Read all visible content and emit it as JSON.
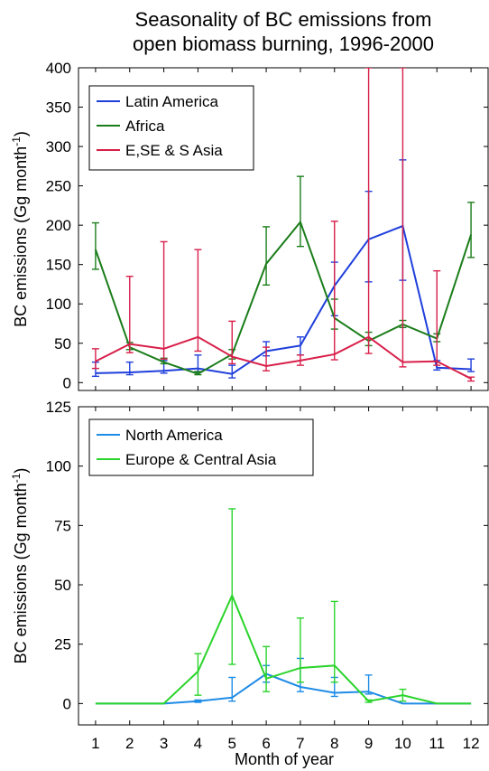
{
  "figure": {
    "title_line1": "Seasonality of BC emissions from",
    "title_line2": "open biomass burning, 1996-2000",
    "xlabel": "Month of year"
  },
  "chart_data": [
    {
      "type": "line",
      "ylabel": "BC emissions (Gg month",
      "ylabel_sup": "-1",
      "ylabel_close": ")",
      "ylim": [
        -10,
        400
      ],
      "yticks": [
        0,
        50,
        100,
        150,
        200,
        250,
        300,
        350,
        400
      ],
      "xlim": [
        0.5,
        12.5
      ],
      "xticks": [
        1,
        2,
        3,
        4,
        5,
        6,
        7,
        8,
        9,
        10,
        11,
        12
      ],
      "legend_position": "top-left",
      "series": [
        {
          "name": "Latin America",
          "color": "#1f3fdb",
          "values": [
            12,
            13,
            15,
            18,
            11,
            40,
            47,
            123,
            182,
            199,
            19,
            17
          ],
          "err_low": [
            8,
            10,
            12,
            14,
            6,
            34,
            35,
            85,
            128,
            130,
            16,
            14
          ],
          "err_high": [
            26,
            26,
            28,
            35,
            22,
            52,
            58,
            153,
            243,
            283,
            28,
            30
          ]
        },
        {
          "name": "Africa",
          "color": "#1b7d1b",
          "values": [
            169,
            45,
            26,
            11,
            36,
            151,
            204,
            82,
            53,
            74,
            56,
            188
          ],
          "err_low": [
            144,
            42,
            24,
            10,
            30,
            124,
            173,
            68,
            47,
            70,
            52,
            159
          ],
          "err_high": [
            203,
            51,
            31,
            14,
            42,
            198,
            262,
            106,
            64,
            79,
            62,
            229
          ]
        },
        {
          "name": "E,SE & S Asia",
          "color": "#d81f4a",
          "values": [
            27,
            49,
            43,
            58,
            33,
            21,
            28,
            36,
            58,
            26,
            27,
            5
          ],
          "err_low": [
            18,
            38,
            30,
            40,
            24,
            15,
            22,
            29,
            37,
            20,
            22,
            2
          ],
          "err_high": [
            43,
            135,
            179,
            169,
            78,
            45,
            35,
            205,
            400,
            400,
            142,
            7
          ]
        }
      ]
    },
    {
      "type": "line",
      "ylabel": "BC emissions (Gg month",
      "ylabel_sup": "-1",
      "ylabel_close": ")",
      "ylim": [
        -9,
        125
      ],
      "yticks": [
        0,
        25,
        50,
        75,
        100,
        125
      ],
      "xlim": [
        0.5,
        12.5
      ],
      "xticks": [
        1,
        2,
        3,
        4,
        5,
        6,
        7,
        8,
        9,
        10,
        11,
        12
      ],
      "legend_position": "top-left",
      "series": [
        {
          "name": "North America",
          "color": "#1f8ce6",
          "values": [
            0,
            0,
            0,
            1,
            2.5,
            12.5,
            7,
            4.5,
            5,
            0,
            0,
            0
          ],
          "err_low": [
            0,
            0,
            0,
            0.5,
            1,
            9,
            5,
            3,
            4,
            0,
            0,
            0
          ],
          "err_high": [
            0,
            0,
            0,
            1.5,
            11,
            16,
            19,
            11,
            12,
            0,
            0,
            0
          ],
          "errorbar_months": [
            4,
            5,
            6,
            7,
            8,
            9
          ]
        },
        {
          "name": "Europe & Central Asia",
          "color": "#2bd42b",
          "values": [
            0,
            0,
            0,
            13.5,
            45.5,
            10.5,
            15,
            16,
            1,
            3.5,
            0,
            0
          ],
          "err_low": [
            0,
            0,
            0,
            3.5,
            16.5,
            5,
            9,
            9,
            0.5,
            1,
            0,
            0
          ],
          "err_high": [
            0,
            0,
            0,
            21,
            82,
            24,
            36,
            43,
            1.5,
            6,
            0,
            0
          ],
          "errorbar_months": [
            4,
            5,
            6,
            7,
            8,
            9,
            10
          ]
        }
      ]
    }
  ]
}
